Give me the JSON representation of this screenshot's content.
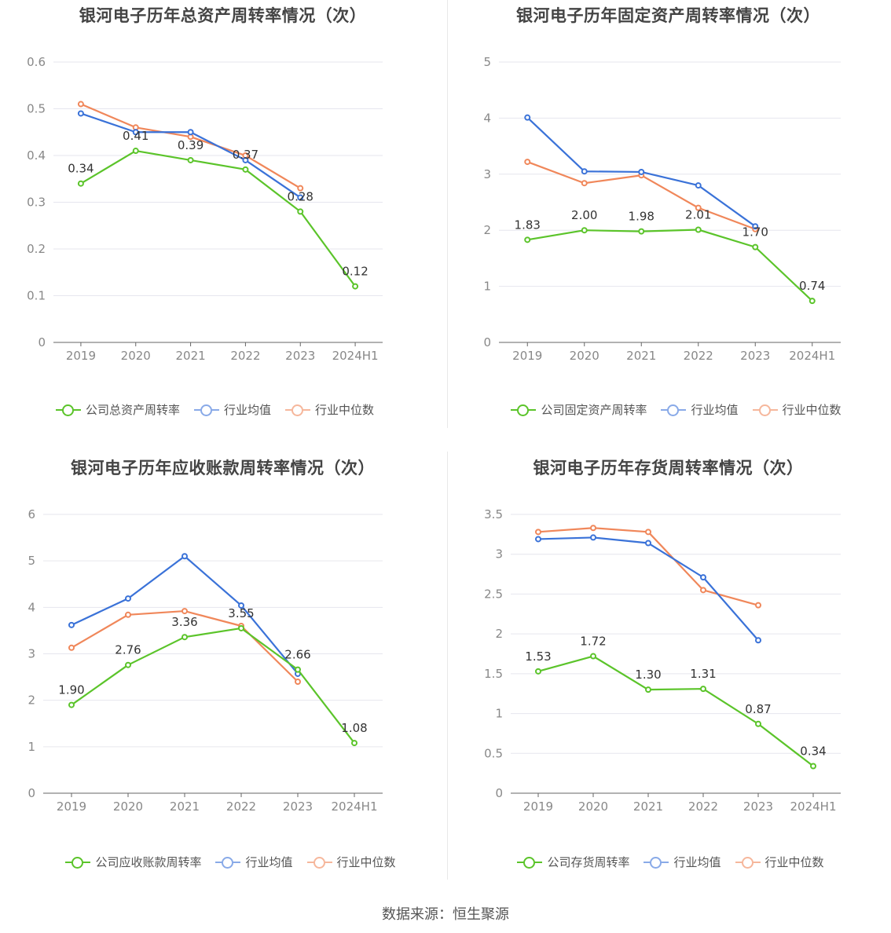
{
  "source_label": "数据来源：恒生聚源",
  "colors": {
    "company": "#5bc42a",
    "avg": "#3a72d8",
    "median": "#f0875a",
    "grid": "#e6e6ee",
    "axis": "#666666"
  },
  "chart_data": [
    {
      "type": "line",
      "title": "银河电子历年总资产周转率情况（次）",
      "categories": [
        "2019",
        "2020",
        "2021",
        "2022",
        "2023",
        "2024H1"
      ],
      "ylim": [
        0,
        0.6
      ],
      "yticks": [
        "0",
        "0.1",
        "0.2",
        "0.3",
        "0.4",
        "0.5",
        "0.6"
      ],
      "series": [
        {
          "name": "公司总资产周转率",
          "values": [
            0.34,
            0.41,
            0.39,
            0.37,
            0.28,
            0.12
          ],
          "labels": [
            "0.34",
            "0.41",
            "0.39",
            "0.37",
            "0.28",
            "0.12"
          ]
        },
        {
          "name": "行业均值",
          "values": [
            0.49,
            0.45,
            0.45,
            0.39,
            0.31,
            null
          ]
        },
        {
          "name": "行业中位数",
          "values": [
            0.51,
            0.46,
            0.44,
            0.4,
            0.33,
            null
          ]
        }
      ]
    },
    {
      "type": "line",
      "title": "银河电子历年固定资产周转率情况（次）",
      "categories": [
        "2019",
        "2020",
        "2021",
        "2022",
        "2023",
        "2024H1"
      ],
      "ylim": [
        0,
        5
      ],
      "yticks": [
        "0",
        "1",
        "2",
        "3",
        "4",
        "5"
      ],
      "series": [
        {
          "name": "公司固定资产周转率",
          "values": [
            1.83,
            2.0,
            1.98,
            2.01,
            1.7,
            0.74
          ],
          "labels": [
            "1.83",
            "2.00",
            "1.98",
            "2.01",
            "1.70",
            "0.74"
          ]
        },
        {
          "name": "行业均值",
          "values": [
            4.01,
            3.05,
            3.04,
            2.8,
            2.07,
            null
          ]
        },
        {
          "name": "行业中位数",
          "values": [
            3.22,
            2.84,
            2.98,
            2.4,
            2.02,
            null
          ]
        }
      ]
    },
    {
      "type": "line",
      "title": "银河电子历年应收账款周转率情况（次）",
      "categories": [
        "2019",
        "2020",
        "2021",
        "2022",
        "2023",
        "2024H1"
      ],
      "ylim": [
        0,
        6
      ],
      "yticks": [
        "0",
        "1",
        "2",
        "3",
        "4",
        "5",
        "6"
      ],
      "series": [
        {
          "name": "公司应收账款周转率",
          "values": [
            1.9,
            2.76,
            3.36,
            3.55,
            2.66,
            1.08
          ],
          "labels": [
            "1.90",
            "2.76",
            "3.36",
            "3.55",
            "2.66",
            "1.08"
          ]
        },
        {
          "name": "行业均值",
          "values": [
            3.62,
            4.19,
            5.1,
            4.04,
            2.57,
            null
          ]
        },
        {
          "name": "行业中位数",
          "values": [
            3.13,
            3.84,
            3.92,
            3.6,
            2.4,
            null
          ]
        }
      ]
    },
    {
      "type": "line",
      "title": "银河电子历年存货周转率情况（次）",
      "categories": [
        "2019",
        "2020",
        "2021",
        "2022",
        "2023",
        "2024H1"
      ],
      "ylim": [
        0,
        3.5
      ],
      "yticks": [
        "0",
        "0.5",
        "1",
        "1.5",
        "2",
        "2.5",
        "3",
        "3.5"
      ],
      "series": [
        {
          "name": "公司存货周转率",
          "values": [
            1.53,
            1.72,
            1.3,
            1.31,
            0.87,
            0.34
          ],
          "labels": [
            "1.53",
            "1.72",
            "1.30",
            "1.31",
            "0.87",
            "0.34"
          ]
        },
        {
          "name": "行业均值",
          "values": [
            3.19,
            3.21,
            3.14,
            2.71,
            1.92,
            null
          ]
        },
        {
          "name": "行业中位数",
          "values": [
            3.28,
            3.33,
            3.28,
            2.55,
            2.36,
            null
          ]
        }
      ]
    }
  ]
}
